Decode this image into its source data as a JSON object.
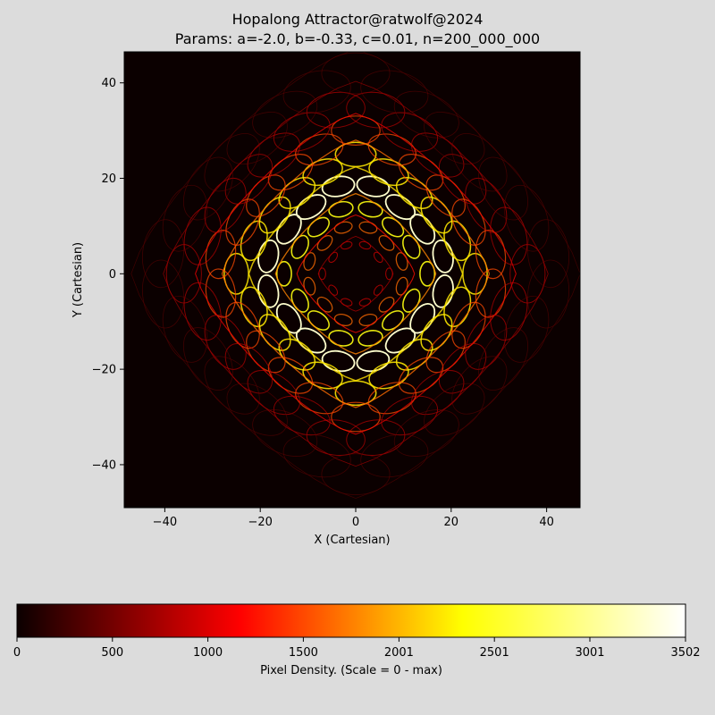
{
  "chart_data": {
    "type": "heatmap",
    "title": "Hopalong Attractor@ratwolf@2024",
    "subtitle": "Params: a=-2.0, b=-0.33, c=0.01, n=200_000_000",
    "xlabel": "X (Cartesian)",
    "ylabel": "Y (Cartesian)",
    "xlim": [
      -48.5,
      47
    ],
    "ylim": [
      -49,
      46.5
    ],
    "xticks": [
      -40,
      -20,
      0,
      20,
      40
    ],
    "yticks": [
      -40,
      -20,
      0,
      20,
      40
    ],
    "xtick_labels": [
      "−40",
      "−20",
      "0",
      "20",
      "40"
    ],
    "ytick_labels": [
      "−40",
      "−20",
      "0",
      "20",
      "40"
    ],
    "grid": false,
    "colormap": "hot",
    "background_color": "#0b0000",
    "colorbar": {
      "orientation": "horizontal",
      "label": "Pixel Density. (Scale = 0 - max)",
      "range": [
        0,
        3502
      ],
      "ticks": [
        0,
        500,
        1000,
        1500,
        2001,
        2501,
        3001,
        3502
      ],
      "tick_labels": [
        "0",
        "500",
        "1000",
        "1500",
        "2001",
        "2501",
        "3001",
        "3502"
      ],
      "color_stops": [
        "#0b0000",
        "#ff0000",
        "#ffff00",
        "#ffffff"
      ]
    },
    "rings": [
      {
        "radius": 7,
        "orbits": 10,
        "density": 0.35
      },
      {
        "radius": 11,
        "orbits": 12,
        "density": 0.55
      },
      {
        "radius": 15,
        "orbits": 14,
        "density": 0.8
      },
      {
        "radius": 20,
        "orbits": 16,
        "density": 1.0
      },
      {
        "radius": 25,
        "orbits": 20,
        "density": 0.75
      },
      {
        "radius": 30,
        "orbits": 22,
        "density": 0.5
      },
      {
        "radius": 36,
        "orbits": 26,
        "density": 0.3
      },
      {
        "radius": 42,
        "orbits": 30,
        "density": 0.15
      }
    ]
  }
}
